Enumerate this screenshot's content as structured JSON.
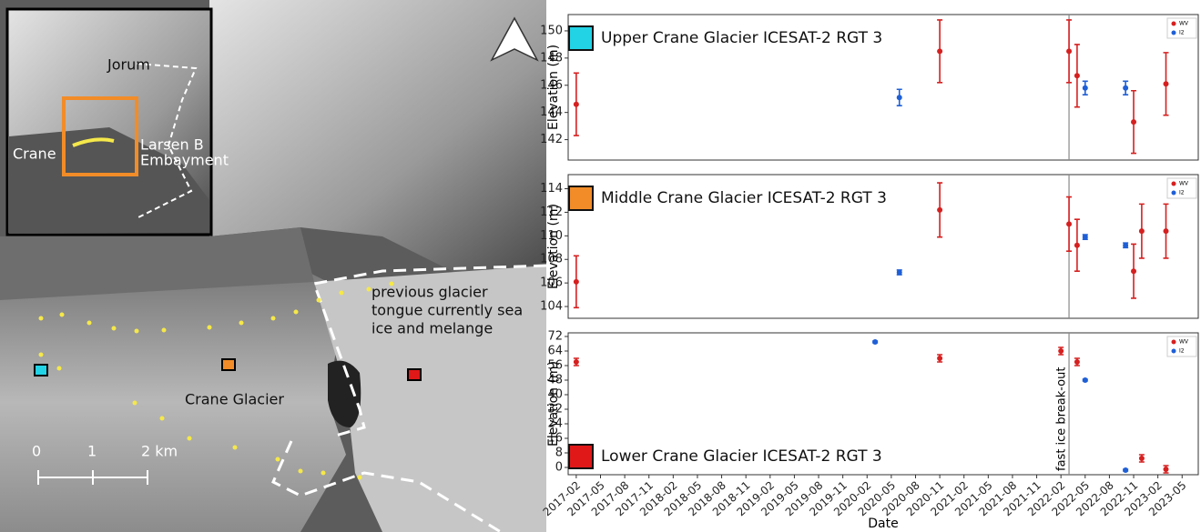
{
  "map": {
    "inset": {
      "jorum": "Jorum",
      "crane": "Crane",
      "larsen": [
        "Larsen B",
        "Embayment"
      ]
    },
    "tongue_note": [
      "previous glacier",
      "tongue currently sea",
      "ice and melange"
    ],
    "glacier_label": "Crane Glacier",
    "scale": [
      "0",
      "1",
      "2 km"
    ]
  },
  "chart_data": [
    {
      "type": "errorbar",
      "title": "Upper Crane Glacier ICESAT-2 RGT 3",
      "title_color": "#22d3e6",
      "ylabel": "Elevation (m)",
      "ylim": [
        140.5,
        151.2
      ],
      "yticks": [
        142,
        144,
        146,
        148,
        150
      ],
      "xlim": [
        "2017-01",
        "2023-07"
      ],
      "vline": "2022-03",
      "legend": "upper right",
      "series": [
        {
          "name": "WV",
          "color": "#d62020",
          "x": [
            "2017-02",
            "2020-11",
            "2022-03",
            "2022-04",
            "2022-11",
            "2023-03"
          ],
          "values": [
            144.6,
            148.5,
            148.5,
            146.7,
            143.3,
            146.1
          ],
          "errors": [
            2.3,
            2.3,
            2.3,
            2.3,
            2.3,
            2.3
          ]
        },
        {
          "name": "I2",
          "color": "#1f5fd6",
          "x": [
            "2020-06",
            "2022-05",
            "2022-10"
          ],
          "values": [
            145.1,
            145.8,
            145.8
          ],
          "errors": [
            0.6,
            0.5,
            0.5
          ]
        }
      ]
    },
    {
      "type": "errorbar",
      "title": "Middle Crane Glacier ICESAT-2 RGT 3",
      "title_color": "#f28c28",
      "ylabel": "Elevation (m)",
      "ylim": [
        103,
        115.2
      ],
      "yticks": [
        104,
        106,
        108,
        110,
        112,
        114
      ],
      "xlim": [
        "2017-01",
        "2023-07"
      ],
      "vline": "2022-03",
      "legend": "upper right",
      "series": [
        {
          "name": "WV",
          "color": "#d62020",
          "x": [
            "2017-02",
            "2020-11",
            "2022-03",
            "2022-04",
            "2022-11",
            "2022-12",
            "2023-03"
          ],
          "values": [
            106.1,
            112.2,
            111,
            109.2,
            107,
            110.4,
            110.4
          ],
          "errors": [
            2.2,
            2.3,
            2.3,
            2.2,
            2.3,
            2.3,
            2.3
          ]
        },
        {
          "name": "I2",
          "color": "#1f5fd6",
          "x": [
            "2020-06",
            "2022-05",
            "2022-10"
          ],
          "values": [
            106.9,
            109.9,
            109.2
          ],
          "errors": [
            0.2,
            0.2,
            0.2
          ]
        }
      ]
    },
    {
      "type": "errorbar",
      "title": "Lower Crane Glacier ICESAT-2 RGT 3",
      "title_color": "#e01818",
      "ylabel": "Elevation (m)",
      "xlabel": "Date",
      "ylim": [
        -4,
        74
      ],
      "yticks": [
        0,
        8,
        16,
        24,
        32,
        40,
        48,
        56,
        64,
        72
      ],
      "xlim": [
        "2017-01",
        "2023-07"
      ],
      "vline": "2022-03",
      "legend": "upper right",
      "annotation": "fast ice break-out",
      "xticks": [
        "2017-02",
        "2017-05",
        "2017-08",
        "2017-11",
        "2018-02",
        "2018-05",
        "2018-08",
        "2018-11",
        "2019-02",
        "2019-05",
        "2019-08",
        "2019-11",
        "2020-02",
        "2020-05",
        "2020-08",
        "2020-11",
        "2021-02",
        "2021-05",
        "2021-08",
        "2021-11",
        "2022-02",
        "2022-05",
        "2022-08",
        "2022-11",
        "2023-02",
        "2023-05"
      ],
      "series": [
        {
          "name": "WV",
          "color": "#d62020",
          "x": [
            "2017-02",
            "2020-11",
            "2022-02",
            "2022-04",
            "2022-12",
            "2023-03"
          ],
          "values": [
            58,
            60,
            64,
            58,
            5,
            -1
          ],
          "errors": [
            2,
            2,
            2,
            2,
            2,
            2
          ]
        },
        {
          "name": "I2",
          "color": "#1f5fd6",
          "x": [
            "2020-03",
            "2022-05",
            "2022-10"
          ],
          "values": [
            69,
            48,
            -1.5
          ],
          "errors": [
            0.5,
            0.5,
            0.5
          ]
        }
      ]
    }
  ]
}
